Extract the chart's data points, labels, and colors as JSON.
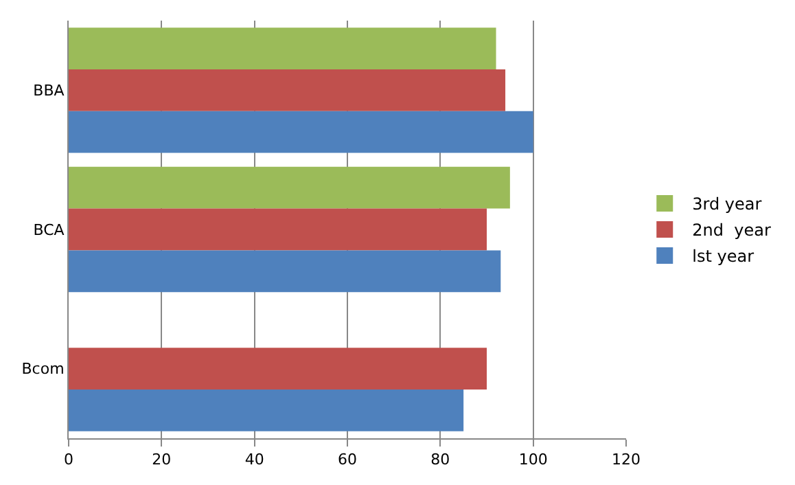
{
  "chart_data": {
    "type": "bar",
    "orientation": "horizontal",
    "categories": [
      "BBA",
      "BCA",
      "Bcom"
    ],
    "series": [
      {
        "name": "3rd year",
        "color": "#9bbb59",
        "values": [
          92,
          95,
          null
        ]
      },
      {
        "name": "2nd  year",
        "color": "#c0504d",
        "values": [
          94,
          90,
          90
        ]
      },
      {
        "name": "lst year",
        "color": "#4f81bd",
        "values": [
          100,
          93,
          85
        ]
      }
    ],
    "xlim": [
      0,
      120
    ],
    "xticks": [
      0,
      20,
      40,
      60,
      80,
      100,
      120
    ],
    "grid": "x",
    "legend": "right"
  }
}
